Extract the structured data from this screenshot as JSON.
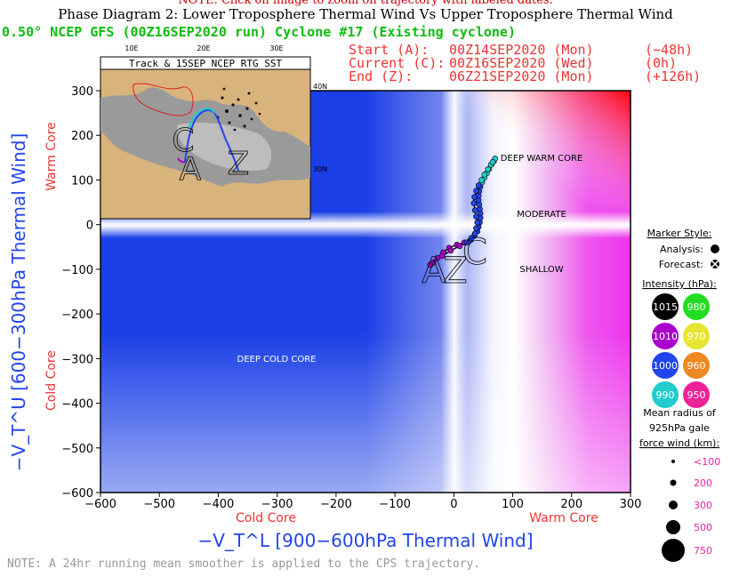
{
  "header": {
    "notice": "NOTE: Click on image to zoom on trajectory with labeled dates.",
    "figure_title": "Phase Diagram 2: Lower Troposphere Thermal Wind Vs Upper Troposphere Thermal Wind",
    "run_title": "0.50° NCEP GFS (00Z16SEP2020 run) Cyclone #17 (Existing cyclone)",
    "start_label": "Start (A):",
    "start_time": "00Z14SEP2020 (Mon)",
    "start_offset": "(−48h)",
    "current_label": "Current (C):",
    "current_time": "00Z16SEP2020 (Wed)",
    "current_offset": "(0h)",
    "end_label": "End (Z):",
    "end_time": "06Z21SEP2020 (Mon)",
    "end_offset": "(+126h)"
  },
  "inset_map": {
    "title": "Track & 15SEP NCEP RTG SST",
    "lon_labels": [
      "10E",
      "20E",
      "30E"
    ],
    "lat_labels": [
      "40N",
      "30N"
    ],
    "track_letters": [
      "C",
      "A",
      "Z"
    ]
  },
  "regions": {
    "deep_warm": "DEEP WARM CORE",
    "moderate": "MODERATE",
    "shallow": "SHALLOW",
    "deep_cold": "DEEP COLD CORE"
  },
  "track_letters": [
    "A",
    "C",
    "Z"
  ],
  "legend": {
    "marker_style_title": "Marker Style:",
    "analysis_label": "Analysis:",
    "forecast_label": "Forecast:",
    "intensity_title": "Intensity (hPa):",
    "intensity": [
      {
        "label": "1015",
        "color": "#000000",
        "text_color": "#ffffff"
      },
      {
        "label": "980",
        "color": "#22dd22",
        "text_color": "#ffffff"
      },
      {
        "label": "1010",
        "color": "#aa00cc",
        "text_color": "#ffffff"
      },
      {
        "label": "970",
        "color": "#e6e633",
        "text_color": "#ffffff"
      },
      {
        "label": "1000",
        "color": "#2244ee",
        "text_color": "#ffffff"
      },
      {
        "label": "960",
        "color": "#ee8822",
        "text_color": "#ffffff"
      },
      {
        "label": "990",
        "color": "#22cccc",
        "text_color": "#ffffff"
      },
      {
        "label": "950",
        "color": "#ee2299",
        "text_color": "#ffffff"
      }
    ],
    "radius_title_1": "Mean radius of",
    "radius_title_2": "925hPa gale",
    "radius_title_3": "force wind (km):",
    "radius_items": [
      {
        "label": "<100",
        "r": 2
      },
      {
        "label": "200",
        "r": 3.5
      },
      {
        "label": "300",
        "r": 5
      },
      {
        "label": "500",
        "r": 8
      },
      {
        "label": "750",
        "r": 13
      }
    ]
  },
  "footer_note": "NOTE: A 24hr running mean smoother is applied to the CPS trajectory.",
  "chart_data": {
    "type": "scatter",
    "title": "Phase Diagram 2: Lower Troposphere Thermal Wind Vs Upper Troposphere Thermal Wind",
    "xlabel": "−V_T^L [900−600hPa Thermal Wind]",
    "ylabel": "−V_T^U [600−300hPa Thermal Wind]",
    "x_left_note": "Cold Core",
    "x_right_note": "Warm Core",
    "y_top_note": "Warm Core",
    "y_bottom_note": "Cold Core",
    "xlim": [
      -600,
      300
    ],
    "ylim": [
      -600,
      300
    ],
    "xticks": [
      -600,
      -500,
      -400,
      -300,
      -200,
      -100,
      0,
      100,
      200,
      300
    ],
    "yticks": [
      -600,
      -500,
      -400,
      -300,
      -200,
      -100,
      0,
      100,
      200,
      300
    ],
    "xtick_labels": [
      "−600",
      "−500",
      "−400",
      "−300",
      "−200",
      "−100",
      "0",
      "100",
      "200",
      "300"
    ],
    "ytick_labels": [
      "−600",
      "−500",
      "−400",
      "−300",
      "−200",
      "−100",
      "0",
      "100",
      "200",
      "300"
    ],
    "grid": false,
    "track": {
      "x": [
        -40,
        -35,
        -28,
        -18,
        -8,
        5,
        18,
        28,
        35,
        40,
        42,
        44,
        45,
        45,
        44,
        43,
        42,
        42,
        43,
        45,
        48,
        52,
        56,
        60,
        64,
        68,
        70
      ],
      "y": [
        -90,
        -85,
        -75,
        -62,
        -52,
        -45,
        -40,
        -35,
        -25,
        -15,
        -5,
        5,
        15,
        25,
        35,
        45,
        55,
        65,
        75,
        85,
        95,
        105,
        115,
        125,
        135,
        142,
        148
      ],
      "colors": [
        "#aa00cc",
        "#aa00cc",
        "#aa00cc",
        "#aa00cc",
        "#aa00cc",
        "#aa00cc",
        "#aa00cc",
        "#2244ee",
        "#2244ee",
        "#2244ee",
        "#2244ee",
        "#2244ee",
        "#2244ee",
        "#2244ee",
        "#2244ee",
        "#2244ee",
        "#2244ee",
        "#2244ee",
        "#2244ee",
        "#2244ee",
        "#22cccc",
        "#22cccc",
        "#22cccc",
        "#22cccc",
        "#22cccc",
        "#22cccc",
        "#22cccc"
      ]
    },
    "track2": {
      "x": [
        -20,
        -5,
        10,
        22,
        30,
        36,
        38,
        40,
        38,
        36,
        34,
        35,
        38,
        42,
        47,
        52,
        58,
        63,
        66
      ],
      "y": [
        -70,
        -58,
        -48,
        -40,
        -30,
        -20,
        -8,
        5,
        18,
        32,
        48,
        62,
        76,
        88,
        100,
        112,
        124,
        134,
        140
      ],
      "colors": [
        "#aa00cc",
        "#aa00cc",
        "#aa00cc",
        "#2244ee",
        "#2244ee",
        "#2244ee",
        "#2244ee",
        "#2244ee",
        "#2244ee",
        "#2244ee",
        "#2244ee",
        "#2244ee",
        "#2244ee",
        "#2244ee",
        "#22cccc",
        "#22cccc",
        "#22cccc",
        "#22cccc",
        "#22cccc"
      ]
    },
    "annotations": [
      "DEEP WARM CORE",
      "MODERATE",
      "SHALLOW",
      "DEEP COLD CORE"
    ]
  }
}
